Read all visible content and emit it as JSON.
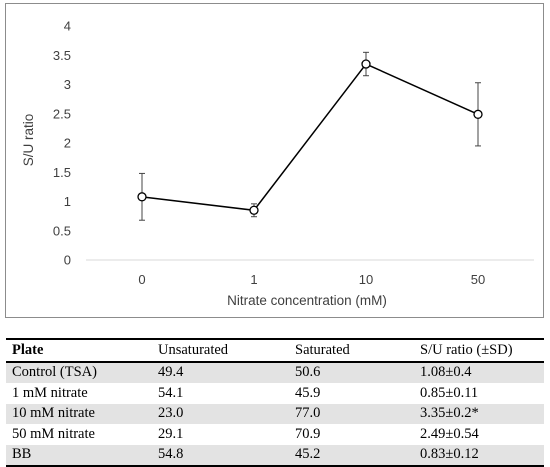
{
  "chart_data": {
    "type": "line",
    "title": "",
    "xlabel": "Nitrate concentration (mM)",
    "ylabel": "S/U ratio",
    "categories": [
      "0",
      "1",
      "10",
      "50"
    ],
    "series": [
      {
        "values": [
          1.08,
          0.85,
          3.35,
          2.49
        ],
        "errors": [
          0.4,
          0.11,
          0.2,
          0.54
        ]
      }
    ],
    "ylim": [
      0,
      4
    ],
    "yticks": [
      "0",
      "0.5",
      "1",
      "1.5",
      "2",
      "2.5",
      "3",
      "3.5",
      "4"
    ],
    "ytick_values": [
      0,
      0.5,
      1,
      1.5,
      2,
      2.5,
      3,
      3.5,
      4
    ],
    "grid": false,
    "marker": "open-circle",
    "line_color": "#000000"
  },
  "table": {
    "headers": [
      "Plate",
      "Unsaturated",
      "Saturated",
      "S/U ratio (±SD)"
    ],
    "rows": [
      [
        "Control (TSA)",
        "49.4",
        "50.6",
        "1.08±0.4"
      ],
      [
        "1 mM nitrate",
        "54.1",
        "45.9",
        "0.85±0.11"
      ],
      [
        "10 mM nitrate",
        "23.0",
        "77.0",
        "3.35±0.2*"
      ],
      [
        "50 mM nitrate",
        "29.1",
        "70.9",
        "2.49±0.54"
      ],
      [
        "BB",
        "54.8",
        "45.2",
        "0.83±0.12"
      ]
    ]
  }
}
